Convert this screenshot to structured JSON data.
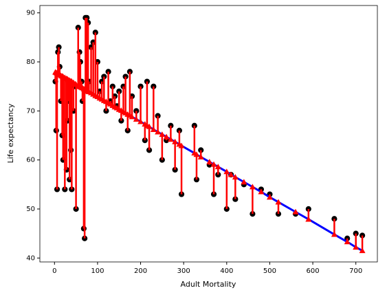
{
  "chart_data": {
    "type": "scatter",
    "x_label": "Adult Mortality",
    "y_label": "Life expectancy",
    "x": [
      2,
      4,
      6,
      8,
      10,
      12,
      15,
      18,
      20,
      24,
      28,
      30,
      33,
      35,
      38,
      40,
      44,
      48,
      50,
      55,
      58,
      60,
      63,
      65,
      68,
      70,
      72,
      75,
      78,
      80,
      85,
      90,
      95,
      100,
      105,
      110,
      115,
      120,
      125,
      130,
      135,
      140,
      145,
      150,
      155,
      160,
      165,
      170,
      175,
      180,
      190,
      200,
      210,
      215,
      220,
      230,
      240,
      250,
      260,
      270,
      280,
      290,
      295,
      325,
      330,
      340,
      360,
      370,
      380,
      400,
      410,
      420,
      440,
      460,
      480,
      500,
      520,
      560,
      590,
      650,
      680,
      700,
      715
    ],
    "series": [
      {
        "color": "#000000",
        "values": [
          76,
          66,
          54,
          82,
          83,
          79,
          72,
          65,
          60,
          54,
          58,
          68,
          72,
          56,
          62,
          54,
          70,
          75,
          50,
          87,
          82,
          80,
          76,
          72,
          46,
          44,
          89,
          89,
          88,
          76,
          83,
          84,
          86,
          80,
          74,
          76,
          77,
          70,
          78,
          72,
          75,
          73,
          71,
          74,
          68,
          75,
          77,
          66,
          78,
          73,
          70,
          75,
          64,
          76,
          62,
          75,
          69,
          60,
          64,
          67,
          58,
          66,
          53,
          67,
          56,
          62,
          59,
          53,
          57,
          50,
          57,
          52,
          55,
          49,
          54,
          53,
          49,
          49,
          50,
          48,
          44,
          45,
          44.6
        ]
      },
      {
        "color": "#ff0000",
        "values": [
          77.9,
          77.8,
          77.7,
          77.6,
          77.5,
          77.4,
          77.2,
          77.1,
          77.0,
          76.8,
          76.6,
          76.5,
          76.3,
          76.2,
          76.1,
          76.0,
          75.8,
          75.5,
          75.4,
          75.2,
          75.0,
          74.9,
          74.8,
          74.7,
          74.5,
          74.4,
          74.3,
          74.2,
          74.0,
          73.9,
          73.7,
          73.4,
          73.1,
          72.9,
          72.6,
          72.4,
          72.1,
          71.9,
          71.6,
          71.4,
          71.1,
          70.8,
          70.6,
          70.3,
          70.1,
          69.8,
          69.6,
          69.3,
          69.1,
          68.8,
          68.3,
          67.8,
          67.3,
          67.0,
          66.8,
          66.2,
          65.7,
          65.2,
          64.7,
          64.2,
          63.7,
          63.2,
          62.9,
          61.4,
          61.1,
          60.6,
          59.6,
          59.1,
          58.6,
          57.6,
          57.0,
          56.5,
          55.5,
          54.5,
          53.5,
          52.4,
          51.4,
          49.4,
          47.9,
          44.8,
          43.3,
          42.2,
          41.5
        ]
      }
    ],
    "fit_color": "#0000ff",
    "xlim": [
      -34,
      750
    ],
    "ylim": [
      39.2,
      91.5
    ],
    "xticks": [
      0,
      100,
      200,
      300,
      400,
      500,
      600,
      700
    ],
    "yticks": [
      40,
      50,
      60,
      70,
      80,
      90
    ]
  }
}
